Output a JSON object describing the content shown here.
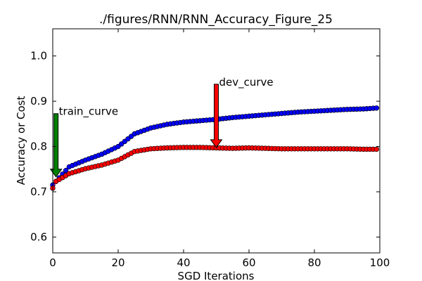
{
  "chart_data": {
    "type": "line",
    "title": "./figures/RNN/RNN_Accuracy_Figure_25",
    "xlabel": "SGD Iterations",
    "ylabel": "Accuracy or Cost",
    "xlim": [
      0,
      100
    ],
    "ylim": [
      0.565,
      1.06
    ],
    "x_ticks": [
      "0",
      "20",
      "40",
      "60",
      "80",
      "100"
    ],
    "y_ticks": [
      "0.6",
      "0.7",
      "0.8",
      "0.9",
      "1.0"
    ],
    "grid": false,
    "series": [
      {
        "color": "#0000ff",
        "x": [
          0,
          5,
          10,
          15,
          20,
          25,
          30,
          35,
          40,
          45,
          50,
          55,
          60,
          65,
          70,
          75,
          80,
          85,
          90,
          95,
          99
        ],
        "y": [
          0.715,
          0.755,
          0.77,
          0.783,
          0.8,
          0.828,
          0.841,
          0.849,
          0.854,
          0.857,
          0.86,
          0.864,
          0.867,
          0.87,
          0.873,
          0.876,
          0.878,
          0.88,
          0.882,
          0.883,
          0.885
        ]
      },
      {
        "color": "#ff0000",
        "x": [
          0,
          1,
          5,
          10,
          15,
          20,
          25,
          30,
          35,
          40,
          45,
          50,
          55,
          60,
          65,
          70,
          75,
          80,
          85,
          90,
          95,
          99
        ],
        "y": [
          0.708,
          0.723,
          0.74,
          0.751,
          0.759,
          0.77,
          0.789,
          0.795,
          0.797,
          0.798,
          0.798,
          0.797,
          0.796,
          0.797,
          0.796,
          0.795,
          0.795,
          0.795,
          0.795,
          0.795,
          0.794,
          0.794
        ]
      }
    ],
    "annotations": [
      {
        "text": "train_curve",
        "x": 1,
        "y": 0.733,
        "color": "#008000"
      },
      {
        "text": "dev_curve",
        "x": 50,
        "y": 0.798,
        "color": "#ff0000"
      }
    ]
  }
}
